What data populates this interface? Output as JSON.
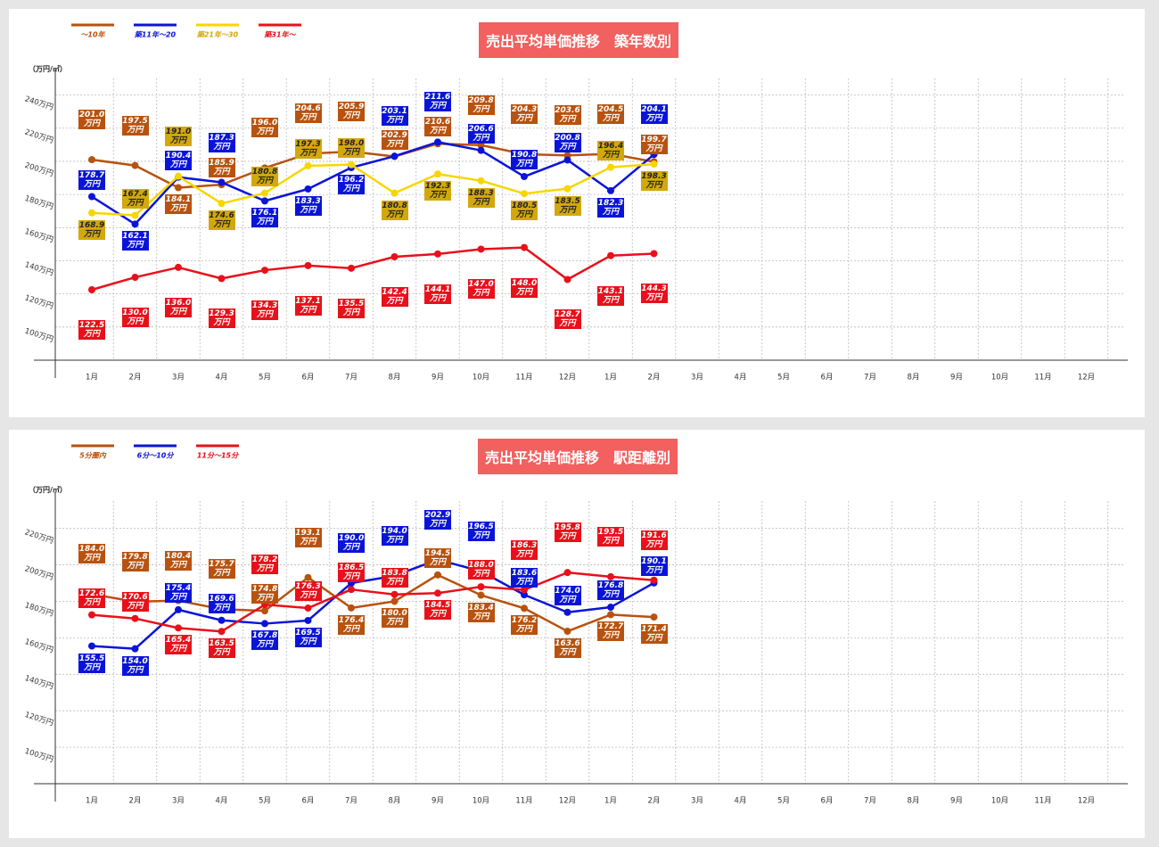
{
  "chart_data": [
    {
      "type": "line",
      "title": "売出平均単価推移　築年数別",
      "y_label": "（万円/㎡）",
      "categories": [
        "1月",
        "2月",
        "3月",
        "4月",
        "5月",
        "6月",
        "7月",
        "8月",
        "9月",
        "10月",
        "11月",
        "12月",
        "1月",
        "2月",
        "3月",
        "4月",
        "5月",
        "6月",
        "7月",
        "8月",
        "9月",
        "10月",
        "11月",
        "12月"
      ],
      "ylim": [
        80,
        250
      ],
      "yticks": [
        {
          "value": 100,
          "label": "100万円"
        },
        {
          "value": 120,
          "label": "120万円"
        },
        {
          "value": 140,
          "label": "140万円"
        },
        {
          "value": 160,
          "label": "160万円"
        },
        {
          "value": 180,
          "label": "180万円"
        },
        {
          "value": 200,
          "label": "200万円"
        },
        {
          "value": 220,
          "label": "220万円"
        },
        {
          "value": 240,
          "label": "240万円"
        }
      ],
      "grid": true,
      "legend": "top-left",
      "series": [
        {
          "name": "～10年",
          "color": "#b8520e",
          "label_color": "#b8520e",
          "values": [
            201.0,
            197.5,
            184.1,
            185.9,
            196.0,
            204.6,
            205.9,
            202.9,
            210.6,
            209.8,
            204.3,
            203.6,
            204.5,
            199.7,
            null,
            null,
            null,
            null,
            null,
            null,
            null,
            null,
            null,
            null
          ],
          "value_labels": [
            "201.0万円",
            "197.5万円",
            "184.1万円",
            "185.9万円",
            "196.0万円",
            "204.6万円",
            "205.9万円",
            "202.9万円",
            "210.6万円",
            "209.8万円",
            "204.3万円",
            "203.6万円",
            "204.5万円",
            "199.7万円",
            null,
            null,
            null,
            null,
            null,
            null,
            null,
            null,
            null,
            null
          ]
        },
        {
          "name": "築11年～20",
          "color": "#0a14d8",
          "label_color": "#0a14d8",
          "values": [
            178.7,
            162.1,
            190.4,
            187.3,
            176.1,
            183.3,
            196.2,
            203.1,
            211.6,
            206.6,
            190.8,
            200.8,
            182.3,
            204.1,
            null,
            null,
            null,
            null,
            null,
            null,
            null,
            null,
            null,
            null
          ],
          "value_labels": [
            "178.7万円",
            "162.1万円",
            "190.4万円",
            "187.3万円",
            "176.1万円",
            "183.3万円",
            "196.2万円",
            "203.1万円",
            "211.6万円",
            "206.6万円",
            "190.8万円",
            "200.8万円",
            "182.3万円",
            "204.1万円",
            null,
            null,
            null,
            null,
            null,
            null,
            null,
            null,
            null,
            null
          ]
        },
        {
          "name": "築21年～30",
          "color": "#f7d600",
          "label_color": "#d2a80c",
          "values": [
            168.9,
            167.4,
            191.0,
            174.6,
            180.8,
            197.3,
            198.0,
            180.8,
            192.3,
            188.3,
            180.5,
            183.5,
            196.4,
            198.3,
            null,
            null,
            null,
            null,
            null,
            null,
            null,
            null,
            null,
            null
          ],
          "value_labels": [
            "168.9万円",
            "167.4万円",
            "191.0万円",
            "174.6万円",
            "180.8万円",
            "197.3万円",
            "198.0万円",
            "180.8万円",
            "192.3万円",
            "188.3万円",
            "180.5万円",
            "183.5万円",
            "196.4万円",
            "198.3万円",
            null,
            null,
            null,
            null,
            null,
            null,
            null,
            null,
            null,
            null
          ]
        },
        {
          "name": "築31年～",
          "color": "#e8101a",
          "label_color": "#e8101a",
          "values": [
            122.5,
            130.0,
            136.0,
            129.3,
            134.3,
            137.1,
            135.5,
            142.4,
            144.1,
            147.0,
            148.0,
            128.7,
            143.1,
            144.3,
            null,
            null,
            null,
            null,
            null,
            null,
            null,
            null,
            null,
            null
          ],
          "value_labels": [
            "122.5万円",
            "130.0万円",
            "136.0万円",
            "129.3万円",
            "134.3万円",
            "137.1万円",
            "135.5万円",
            "142.4万円",
            "144.1万円",
            "147.0万円",
            "148.0万円",
            "128.7万円",
            "143.1万円",
            "144.3万円",
            null,
            null,
            null,
            null,
            null,
            null,
            null,
            null,
            null,
            null
          ]
        }
      ]
    },
    {
      "type": "line",
      "title": "売出平均単価推移　駅距離別",
      "y_label": "（万円/㎡）",
      "categories": [
        "1月",
        "2月",
        "3月",
        "4月",
        "5月",
        "6月",
        "7月",
        "8月",
        "9月",
        "10月",
        "11月",
        "12月",
        "1月",
        "2月",
        "3月",
        "4月",
        "5月",
        "6月",
        "7月",
        "8月",
        "9月",
        "10月",
        "11月",
        "12月"
      ],
      "ylim": [
        80,
        235
      ],
      "yticks": [
        {
          "value": 100,
          "label": "100万円"
        },
        {
          "value": 120,
          "label": "120万円"
        },
        {
          "value": 140,
          "label": "140万円"
        },
        {
          "value": 160,
          "label": "160万円"
        },
        {
          "value": 180,
          "label": "180万円"
        },
        {
          "value": 200,
          "label": "200万円"
        },
        {
          "value": 220,
          "label": "220万円"
        }
      ],
      "grid": true,
      "legend": "top-left",
      "series": [
        {
          "name": "5分圏内",
          "color": "#b8520e",
          "label_color": "#b8520e",
          "values": [
            184.0,
            179.8,
            180.4,
            175.7,
            174.8,
            193.1,
            176.4,
            180.0,
            194.5,
            183.4,
            176.2,
            163.6,
            172.7,
            171.4,
            null,
            null,
            null,
            null,
            null,
            null,
            null,
            null,
            null,
            null
          ],
          "value_labels": [
            "184.0万円",
            "179.8万円",
            "180.4万円",
            "175.7万円",
            "174.8万円",
            "193.1万円",
            "176.4万円",
            "180.0万円",
            "194.5万円",
            "183.4万円",
            "176.2万円",
            "163.6万円",
            "172.7万円",
            "171.4万円",
            null,
            null,
            null,
            null,
            null,
            null,
            null,
            null,
            null,
            null
          ]
        },
        {
          "name": "6分～10分",
          "color": "#0a14d8",
          "label_color": "#0a14d8",
          "values": [
            155.5,
            154.0,
            175.4,
            169.6,
            167.8,
            169.5,
            190.0,
            194.0,
            202.9,
            196.5,
            183.6,
            174.0,
            176.8,
            190.1,
            null,
            null,
            null,
            null,
            null,
            null,
            null,
            null,
            null,
            null
          ],
          "value_labels": [
            "155.5万円",
            "154.0万円",
            "175.4万円",
            "169.6万円",
            "167.8万円",
            "169.5万円",
            "190.0万円",
            "194.0万円",
            "202.9万円",
            "196.5万円",
            "183.6万円",
            "174.0万円",
            "176.8万円",
            "190.1万円",
            null,
            null,
            null,
            null,
            null,
            null,
            null,
            null,
            null,
            null
          ]
        },
        {
          "name": "11分～15分",
          "color": "#e8101a",
          "label_color": "#e8101a",
          "values": [
            172.6,
            170.6,
            165.4,
            163.5,
            178.2,
            176.3,
            186.5,
            183.8,
            184.5,
            188.0,
            186.3,
            195.8,
            193.5,
            191.6,
            null,
            null,
            null,
            null,
            null,
            null,
            null,
            null,
            null,
            null
          ],
          "value_labels": [
            "172.6万円",
            "170.6万円",
            "165.4万円",
            "163.5万円",
            "178.2万円",
            "176.3万円",
            "186.5万円",
            "183.8万円",
            "184.5万円",
            "188.0万円",
            "186.3万円",
            "195.8万円",
            "193.5万円",
            "191.6万円",
            null,
            null,
            null,
            null,
            null,
            null,
            null,
            null,
            null,
            null
          ]
        }
      ]
    }
  ]
}
